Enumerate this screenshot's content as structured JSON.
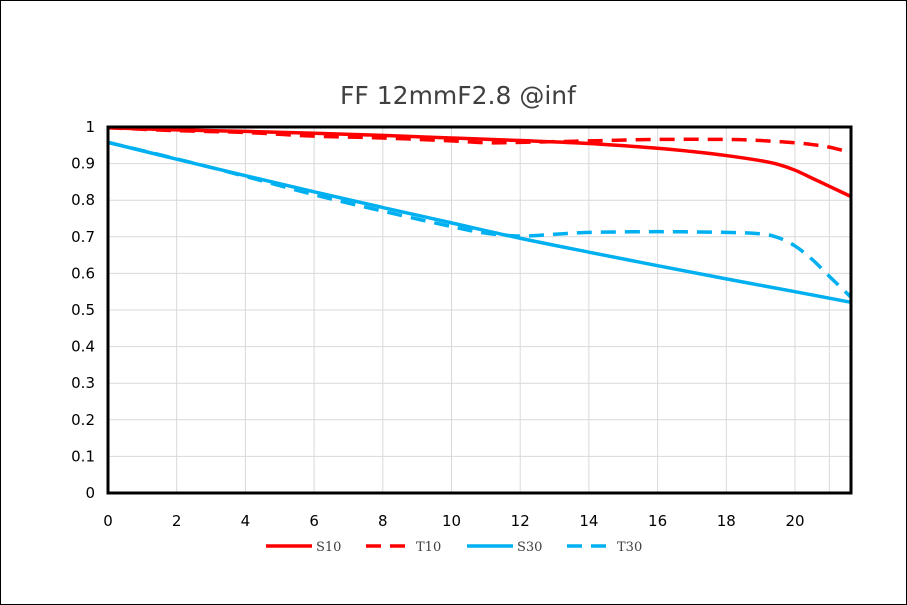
{
  "chart_data": {
    "type": "line",
    "title": "FF 12mmF2.8 @inf",
    "xlabel": "",
    "ylabel": "",
    "xlim": [
      0,
      21.63
    ],
    "ylim": [
      0,
      1
    ],
    "xticks": [
      0,
      2,
      4,
      6,
      8,
      10,
      12,
      14,
      16,
      18,
      20
    ],
    "yticks": [
      0,
      0.1,
      0.2,
      0.3,
      0.4,
      0.5,
      0.6,
      0.7,
      0.8,
      0.9,
      1
    ],
    "ytick_labels": [
      "0",
      "0.1",
      "0.2",
      "0.3",
      "0.4",
      "0.5",
      "0.6",
      "0.7",
      "0.8",
      "0.9",
      "1"
    ],
    "xtick_labels": [
      "0",
      "2",
      "4",
      "6",
      "8",
      "10",
      "12",
      "14",
      "16",
      "18",
      "20"
    ],
    "grid": true,
    "legend_position": "bottom",
    "series": [
      {
        "name": "S10",
        "color": "#ff0000",
        "dash": "solid",
        "x": [
          0,
          2,
          4,
          6,
          8,
          10,
          12,
          14,
          16,
          17,
          18,
          19,
          19.5,
          20,
          20.5,
          21,
          21.63
        ],
        "y": [
          0.998,
          0.992,
          0.988,
          0.983,
          0.977,
          0.97,
          0.963,
          0.955,
          0.942,
          0.933,
          0.922,
          0.908,
          0.898,
          0.882,
          0.86,
          0.838,
          0.81
        ]
      },
      {
        "name": "T10",
        "color": "#ff0000",
        "dash": "dashed",
        "x": [
          0,
          2,
          4,
          6,
          8,
          10,
          11,
          12,
          14,
          16,
          18,
          19,
          20,
          20.5,
          21,
          21.63
        ],
        "y": [
          0.998,
          0.99,
          0.985,
          0.975,
          0.97,
          0.962,
          0.957,
          0.958,
          0.962,
          0.966,
          0.966,
          0.963,
          0.957,
          0.952,
          0.945,
          0.93
        ]
      },
      {
        "name": "S30",
        "color": "#00b0f0",
        "dash": "solid",
        "x": [
          0,
          2,
          4,
          6,
          8,
          10,
          12,
          14,
          16,
          18,
          20,
          21.63
        ],
        "y": [
          0.958,
          0.912,
          0.867,
          0.823,
          0.78,
          0.738,
          0.696,
          0.658,
          0.621,
          0.585,
          0.55,
          0.521
        ]
      },
      {
        "name": "T30",
        "color": "#00b0f0",
        "dash": "dashed",
        "x": [
          0,
          2,
          4,
          6,
          8,
          10,
          11,
          12,
          13,
          14,
          16,
          18,
          19,
          19.5,
          20,
          20.5,
          21,
          21.63
        ],
        "y": [
          0.958,
          0.913,
          0.865,
          0.815,
          0.77,
          0.728,
          0.71,
          0.702,
          0.707,
          0.712,
          0.714,
          0.712,
          0.708,
          0.698,
          0.675,
          0.638,
          0.592,
          0.535
        ]
      }
    ]
  }
}
